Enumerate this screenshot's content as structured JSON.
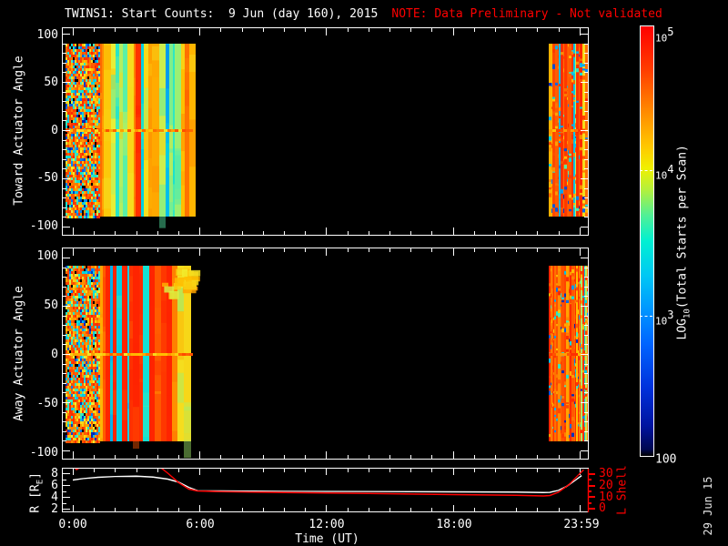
{
  "title": {
    "main": "TWINS1: Start Counts:  9 Jun (day 160), 2015",
    "note": "NOTE: Data Preliminary - Not validated",
    "note_color": "#ff0000"
  },
  "datestamp": "29 Jun 15",
  "xaxis": {
    "label": "Time (UT)",
    "ticks": [
      "0:00",
      "6:00",
      "12:00",
      "18:00",
      "23:59"
    ]
  },
  "panels": {
    "toward": {
      "label": "Toward Actuator Angle",
      "ticks": [
        "100",
        "50",
        "0",
        "-50",
        "-100"
      ]
    },
    "away": {
      "label": "Away Actuator Angle",
      "ticks": [
        "100",
        "50",
        "0",
        "-50",
        "-100"
      ]
    }
  },
  "bottom": {
    "r_prefix": "R [R",
    "r_sub": "E",
    "r_suffix": "]",
    "r_ticks": [
      "8",
      "6",
      "4",
      "2"
    ],
    "l_label": "L Shell",
    "l_ticks": [
      "30",
      "20",
      "10",
      "0"
    ],
    "l_color": "#ff0000"
  },
  "colorbar": {
    "label_prefix": "LOG",
    "label_sub": "10",
    "label_suffix": "(Total Starts per Scan)",
    "ticks": [
      {
        "base": "10",
        "exp": "5"
      },
      {
        "base": "10",
        "exp": "4"
      },
      {
        "base": "10",
        "exp": "3"
      },
      {
        "base": "100",
        "exp": ""
      }
    ],
    "value_range": [
      100,
      100000
    ],
    "colormap_stops": [
      [
        0.0,
        "#ff0000"
      ],
      [
        0.1,
        "#ff3c00"
      ],
      [
        0.2,
        "#ff8c00"
      ],
      [
        0.28,
        "#ffc800"
      ],
      [
        0.33,
        "#f0f000"
      ],
      [
        0.38,
        "#b4f03c"
      ],
      [
        0.44,
        "#50f096"
      ],
      [
        0.5,
        "#00f0d2"
      ],
      [
        0.58,
        "#00c8f4"
      ],
      [
        0.66,
        "#0096ff"
      ],
      [
        0.74,
        "#0064ff"
      ],
      [
        0.84,
        "#0032dc"
      ],
      [
        0.93,
        "#0014a0"
      ],
      [
        0.985,
        "#000850"
      ],
      [
        1.0,
        "#000000"
      ]
    ]
  },
  "chart_data": [
    {
      "type": "heatmap",
      "title": "TWINS1 start counts vs Toward actuator angle",
      "xlabel": "Time (UT)",
      "ylabel": "Toward Actuator Angle",
      "xlim_hours": [
        0,
        24
      ],
      "ylim": [
        -107,
        107
      ],
      "x_ticks": [
        "0:00",
        "6:00",
        "12:00",
        "18:00",
        "23:59"
      ],
      "y_ticks": [
        100,
        50,
        0,
        -50,
        -100
      ],
      "value_label": "LOG10(Total Starts per Scan)",
      "value_range_log10": [
        2,
        5
      ],
      "data_coverage_ut": [
        [
          0.0,
          5.6
        ],
        [
          22.5,
          24.0
        ]
      ],
      "angle_coverage": [
        -90,
        91
      ],
      "qualitative": "0:00-1:45 noisy mixed orange/red cells ~10^4.5; 1:45-5:36 smooth vertical bands alternating cyan ~10^3.3 and yellow-orange ~10^4.3; horizontal enhanced band at angle 0; 22:30-24:00 dense orange/red ~10^4.7 with cyan/blue specks"
    },
    {
      "type": "heatmap",
      "title": "TWINS1 start counts vs Away actuator angle",
      "xlabel": "Time (UT)",
      "ylabel": "Away Actuator Angle",
      "xlim_hours": [
        0,
        24
      ],
      "ylim": [
        -107,
        107
      ],
      "x_ticks": [
        "0:00",
        "6:00",
        "12:00",
        "18:00",
        "23:59"
      ],
      "y_ticks": [
        100,
        50,
        0,
        -50,
        -100
      ],
      "value_label": "LOG10(Total Starts per Scan)",
      "value_range_log10": [
        2,
        5
      ],
      "data_coverage_ut": [
        [
          0.0,
          5.6
        ],
        [
          22.5,
          24.0
        ]
      ],
      "angle_coverage": [
        -91,
        92
      ],
      "qualitative": "same pattern as Toward panel; extra yellow-orange blob near angles 55..85 around 4:40-5:30; horizontal enhanced band at angle 0"
    },
    {
      "type": "line",
      "xlabel": "Time (UT)",
      "xlim_hours": [
        0,
        24
      ],
      "ylim_left": [
        1.4,
        9.0
      ],
      "ylim_right": [
        0,
        36
      ],
      "series": [
        {
          "name": "R [RE]",
          "color": "#ffffff",
          "axis": "left",
          "points": [
            [
              0,
              6.85
            ],
            [
              0.5,
              7.1
            ],
            [
              1.2,
              7.3
            ],
            [
              2,
              7.45
            ],
            [
              3,
              7.5
            ],
            [
              3.8,
              7.35
            ],
            [
              4.5,
              7.0
            ],
            [
              5.0,
              6.5
            ],
            [
              5.5,
              5.6
            ],
            [
              5.9,
              5.05
            ],
            [
              7,
              5.0
            ],
            [
              10,
              4.95
            ],
            [
              14,
              4.9
            ],
            [
              18,
              4.85
            ],
            [
              21,
              4.8
            ],
            [
              22.3,
              4.72
            ],
            [
              22.6,
              4.78
            ],
            [
              23.0,
              5.1
            ],
            [
              23.4,
              5.8
            ],
            [
              23.8,
              6.8
            ],
            [
              24.1,
              7.6
            ]
          ]
        },
        {
          "name": "L Shell",
          "color": "#ff0000",
          "axis": "right",
          "points": [
            [
              0.02,
              36
            ],
            [
              0.18,
              33
            ],
            [
              0.45,
              36.5
            ],
            [
              4.05,
              36.5
            ],
            [
              4.5,
              30
            ],
            [
              5.0,
              22
            ],
            [
              5.5,
              16.2
            ],
            [
              5.9,
              14.6
            ],
            [
              7,
              14.0
            ],
            [
              10,
              13.2
            ],
            [
              14,
              12.4
            ],
            [
              18,
              11.5
            ],
            [
              21,
              10.8
            ],
            [
              22.3,
              10.3
            ],
            [
              22.6,
              10.7
            ],
            [
              23.0,
              13.5
            ],
            [
              23.5,
              20
            ],
            [
              24.0,
              29.5
            ],
            [
              24.2,
              33
            ]
          ]
        }
      ]
    }
  ]
}
